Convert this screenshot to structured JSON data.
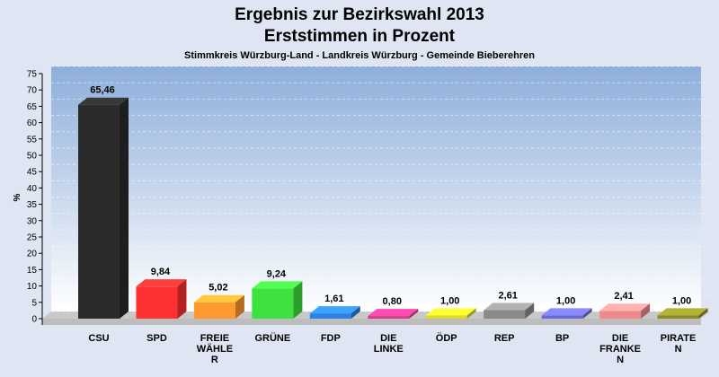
{
  "chart_data": {
    "type": "bar",
    "title": "Ergebnis zur Bezirkswahl 2013",
    "subtitle": "Erststimmen in Prozent",
    "subsubtitle": "Stimmkreis Würzburg-Land - Landkreis Würzburg - Gemeinde Bieberehren",
    "ylabel": "%",
    "xlabel": "",
    "ylim": [
      0,
      75
    ],
    "ytick_step": 5,
    "grid": true,
    "categories": [
      [
        "CSU"
      ],
      [
        "SPD"
      ],
      [
        "FREIE",
        "WÄHLE",
        "R"
      ],
      [
        "GRÜNE"
      ],
      [
        "FDP"
      ],
      [
        "DIE",
        "LINKE"
      ],
      [
        "ÖDP"
      ],
      [
        "REP"
      ],
      [
        "BP"
      ],
      [
        "DIE",
        "FRANKE",
        "N"
      ],
      [
        "PIRATE",
        "N"
      ]
    ],
    "values": [
      65.46,
      9.84,
      5.02,
      9.24,
      1.61,
      0.8,
      1.0,
      2.61,
      1.0,
      2.41,
      1.0
    ],
    "value_labels": [
      "65,46",
      "9,84",
      "5,02",
      "9,24",
      "1,61",
      "0,80",
      "1,00",
      "2,61",
      "1,00",
      "2,41",
      "1,00"
    ],
    "colors": [
      "#2b2b2b",
      "#ff3030",
      "#ff9a30",
      "#3ee23e",
      "#2e7fe6",
      "#d63a8a",
      "#dcdc28",
      "#8a8a8a",
      "#6a6ad8",
      "#f08a8a",
      "#8a8a28"
    ]
  }
}
